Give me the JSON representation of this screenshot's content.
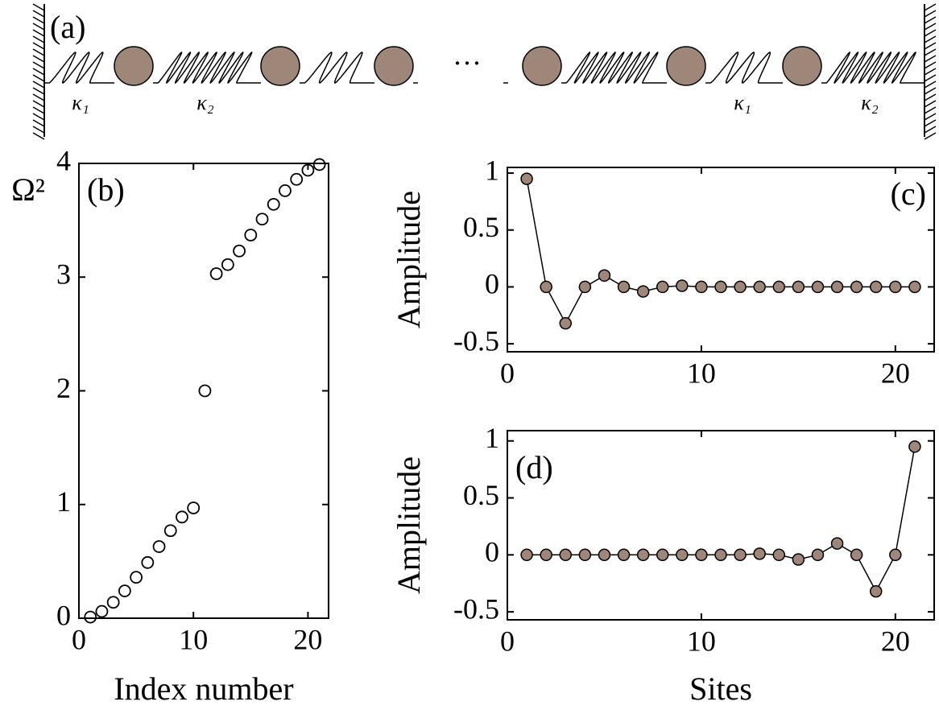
{
  "diagram": {
    "label": "(a)",
    "spring_labels": [
      "κ₁",
      "κ₂",
      "κ₁",
      "κ₂"
    ],
    "ellipsis": "···"
  },
  "chart_data": [
    {
      "type": "scatter",
      "label": "(b)",
      "xlabel": "Index number",
      "ylabel": "Ω²",
      "x": [
        1,
        2,
        3,
        4,
        5,
        6,
        7,
        8,
        9,
        10,
        11,
        12,
        13,
        14,
        15,
        16,
        17,
        18,
        19,
        20,
        21
      ],
      "values": [
        0.01,
        0.06,
        0.14,
        0.24,
        0.36,
        0.49,
        0.63,
        0.77,
        0.89,
        0.97,
        2.0,
        3.03,
        3.11,
        3.23,
        3.37,
        3.51,
        3.64,
        3.76,
        3.86,
        3.94,
        3.99
      ],
      "color": "#000000",
      "filled": false,
      "xlim": [
        0,
        21.8
      ],
      "ylim": [
        0,
        4
      ],
      "xticks": [
        0,
        10,
        20
      ],
      "yticks": [
        0,
        1,
        2,
        3,
        4
      ]
    },
    {
      "type": "line",
      "label": "(c)",
      "ylabel": "Amplitude",
      "x": [
        1,
        2,
        3,
        4,
        5,
        6,
        7,
        8,
        9,
        10,
        11,
        12,
        13,
        14,
        15,
        16,
        17,
        18,
        19,
        20,
        21
      ],
      "values": [
        0.95,
        0,
        -0.32,
        0,
        0.1,
        0,
        -0.04,
        0,
        0.01,
        0,
        0,
        0,
        0,
        0,
        0,
        0,
        0,
        0,
        0,
        0,
        0
      ],
      "color": "#000000",
      "marker_color": "#9e8679",
      "xlim": [
        0,
        22
      ],
      "ylim": [
        -0.57,
        1.05
      ],
      "xticks": [
        0,
        10,
        20
      ],
      "yticks": [
        -0.5,
        0,
        0.5,
        1
      ]
    },
    {
      "type": "line",
      "label": "(d)",
      "xlabel": "Sites",
      "ylabel": "Amplitude",
      "x": [
        1,
        2,
        3,
        4,
        5,
        6,
        7,
        8,
        9,
        10,
        11,
        12,
        13,
        14,
        15,
        16,
        17,
        18,
        19,
        20,
        21
      ],
      "values": [
        0,
        0,
        0,
        0,
        0,
        0,
        0,
        0,
        0,
        0,
        0,
        0,
        0.01,
        0,
        -0.04,
        0,
        0.1,
        0,
        -0.32,
        0,
        0.95
      ],
      "color": "#000000",
      "marker_color": "#9e8679",
      "xlim": [
        0,
        22
      ],
      "ylim": [
        -0.57,
        1.09
      ],
      "xticks": [
        0,
        10,
        20
      ],
      "yticks": [
        -0.5,
        0,
        0.5,
        1
      ]
    }
  ]
}
